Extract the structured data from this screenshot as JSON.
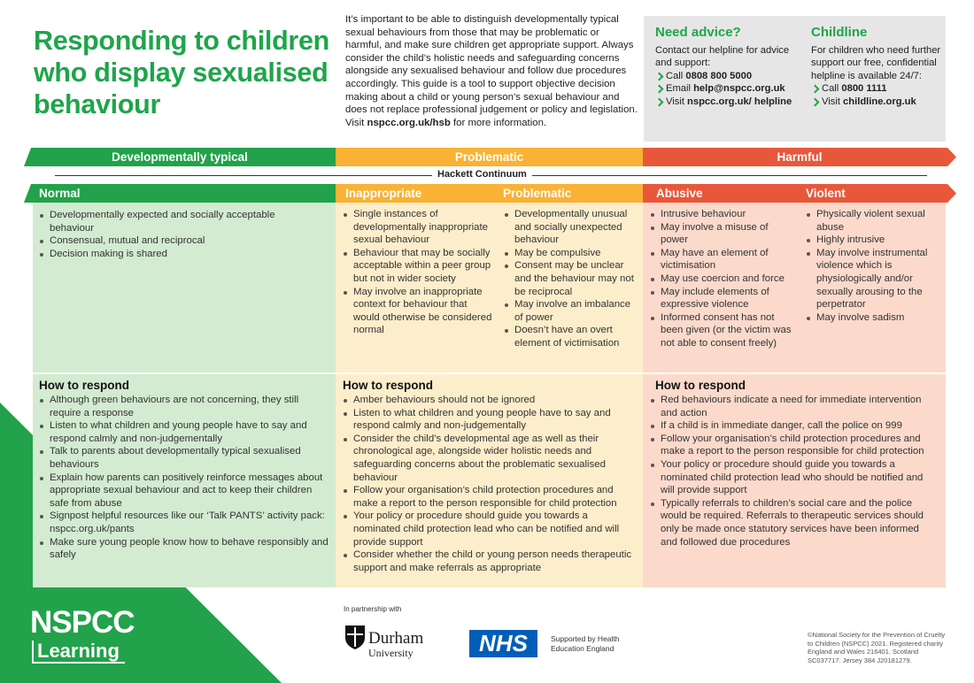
{
  "header": {
    "title": "Responding to children who display sexualised behaviour"
  },
  "intro": {
    "text": "It’s important to be able to distinguish developmentally typical sexual behaviours from those that may be problematic or harmful, and make sure children get appropriate support. Always consider the child’s holistic needs and safeguarding concerns alongside any sexualised behaviour and follow due procedures accordingly. This guide is a tool to support objective decision making about a child or young person’s sexual behaviour and does not replace professional judgement or policy and legislation. Visit",
    "link": "nspcc.org.uk/hsb",
    "after": "for more information."
  },
  "advice": {
    "title": "Need advice?",
    "text": "Contact our helpline for advice and support:",
    "items": [
      {
        "prefix": "Call",
        "bold": "0808 800 5000"
      },
      {
        "prefix": "Email",
        "bold": "help@nspcc.org.uk"
      },
      {
        "prefix": "Visit",
        "bold": "nspcc.org.uk/ helpline"
      }
    ]
  },
  "childline": {
    "title": "Childline",
    "text": "For children who need further support our free, confidential helpline is available 24/7:",
    "items": [
      {
        "prefix": "Call",
        "bold": "0800 1111"
      },
      {
        "prefix": "Visit",
        "bold": "childline.org.uk"
      }
    ]
  },
  "bands": [
    "Developmentally typical",
    "Problematic",
    "Harmful"
  ],
  "continuum": "Hackett Continuum",
  "columns": [
    {
      "title": "Normal",
      "items": [
        "Developmentally expected and socially acceptable behaviour",
        "Consensual, mutual and reciprocal",
        "Decision making is shared"
      ]
    },
    {
      "title": "Inappropriate",
      "items": [
        "Single instances of developmentally inappropriate sexual behaviour",
        "Behaviour that may be socially acceptable within a peer group but not in wider society",
        "May involve an inappropriate context for behaviour that would otherwise be considered normal"
      ]
    },
    {
      "title": "Problematic",
      "items": [
        "Developmentally unusual and socially unexpected behaviour",
        "May be compulsive",
        "Consent may be unclear and the behaviour may not be reciprocal",
        "May involve an imbalance of power",
        "Doesn’t have an overt element of victimisation"
      ]
    },
    {
      "title": "Abusive",
      "items": [
        "Intrusive behaviour",
        "May involve a misuse of power",
        "May have an element of victimisation",
        "May use coercion and force",
        "May include elements of expressive violence",
        "Informed consent has not been given (or the victim was not able to consent freely)"
      ]
    },
    {
      "title": "Violent",
      "items": [
        "Physically violent sexual abuse",
        "Highly intrusive",
        "May involve instrumental violence which is physiologically and/or sexually arousing to the perpetrator",
        "May involve sadism"
      ]
    }
  ],
  "respond": [
    {
      "title": "How to respond",
      "items": [
        "Although green behaviours are not concerning, they still require a response",
        "Listen to what children and young people have to say and respond calmly and non-judgementally",
        "Talk to parents about developmentally typical sexualised behaviours",
        "Explain how parents can positively reinforce messages about appropriate sexual behaviour and act to keep their children safe from abuse",
        "Signpost helpful resources like our ‘Talk PANTS’ activity pack: nspcc.org.uk/pants",
        "Make sure young people know how to behave responsibly and safely"
      ]
    },
    {
      "title": "How to respond",
      "items": [
        "Amber behaviours should not be ignored",
        "Listen to what children and young people have to say and respond calmly and non-judgementally",
        "Consider the child’s developmental age as well as their chronological age, alongside wider holistic needs and safeguarding concerns about the problematic sexualised behaviour",
        "Follow your organisation’s child protection procedures and make a report to the person responsible for child protection",
        "Your policy or procedure should guide you towards a nominated child protection lead who can be notified and will provide support",
        "Consider whether the child or young person needs therapeutic support and make referrals as appropriate"
      ]
    },
    {
      "title": "How to respond",
      "items": [
        "Red behaviours indicate a need for immediate intervention and action",
        "If a child is in immediate danger, call the police on 999",
        "Follow your organisation’s child protection procedures and make a report to the person responsible for child protection",
        "Your policy or procedure should guide you towards a nominated child protection lead who should be notified and will provide support",
        "Typically referrals to children’s social care and the police would be required. Referrals to therapeutic services should only be made once statutory services have been informed and followed due procedures"
      ]
    }
  ],
  "footer": {
    "logo": "NSPCC",
    "logo_sub": "Learning",
    "partnership": "In partnership with",
    "durham": "Durham",
    "university": "University",
    "nhs": "NHS",
    "supported": "Supported by Health Education England",
    "copyright": "©National Society for the Prevention of Cruelty to Children (NSPCC) 2021. Registered charity England and Wales 216401. Scotland SC037717. Jersey 384 J20181279."
  }
}
